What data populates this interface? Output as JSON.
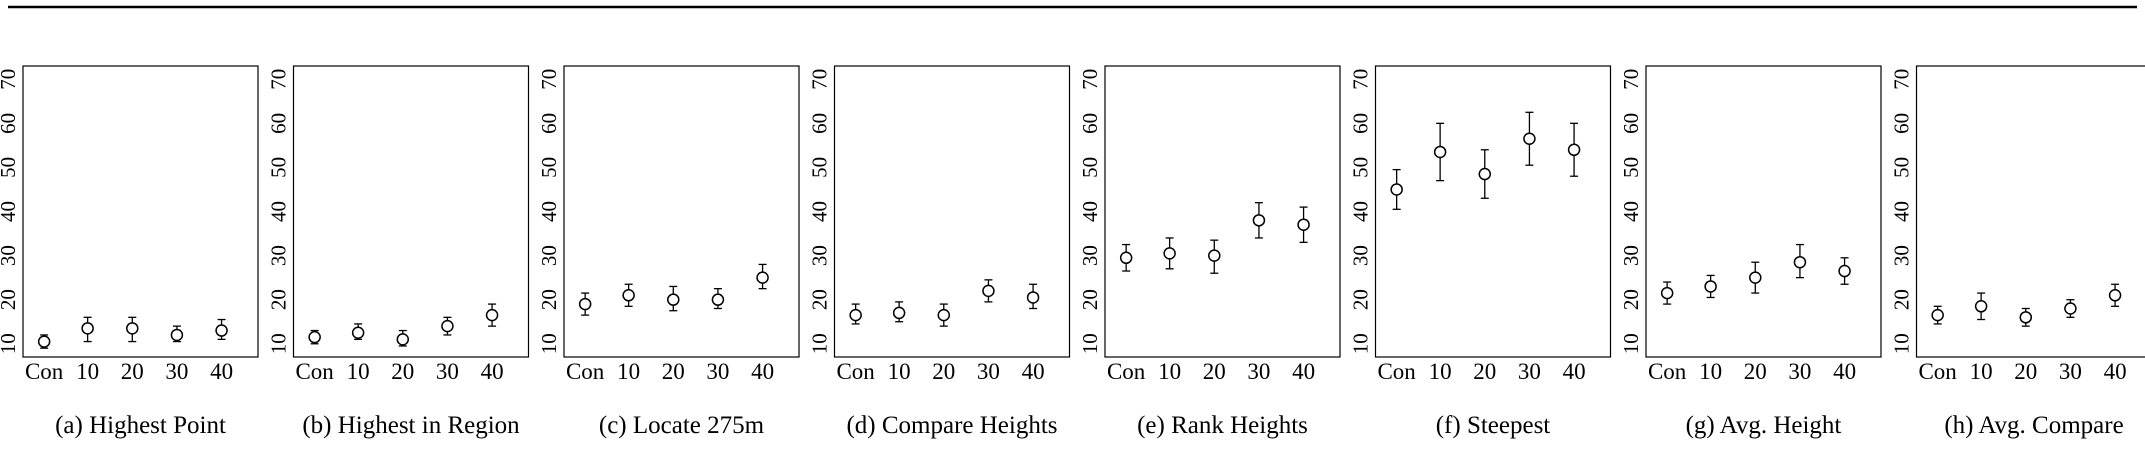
{
  "chart_data": [
    {
      "type": "scatter",
      "caption": "(a) Highest Point",
      "categories": [
        "Con",
        "10",
        "20",
        "30",
        "40"
      ],
      "yticks": [
        10,
        20,
        30,
        40,
        50,
        60,
        70
      ],
      "ylim": [
        7,
        73
      ],
      "error_bars": true,
      "series": [
        {
          "values": [
            10.5,
            13.5,
            13.5,
            12,
            13
          ],
          "lower": [
            9,
            10.5,
            10.5,
            10.5,
            11
          ],
          "upper": [
            12,
            16,
            16,
            14,
            15.5
          ]
        }
      ]
    },
    {
      "type": "scatter",
      "caption": "(b) Highest in Region",
      "categories": [
        "Con",
        "10",
        "20",
        "30",
        "40"
      ],
      "yticks": [
        10,
        20,
        30,
        40,
        50,
        60,
        70
      ],
      "ylim": [
        7,
        73
      ],
      "error_bars": true,
      "series": [
        {
          "values": [
            11.5,
            12.5,
            11,
            14,
            16.5
          ],
          "lower": [
            10,
            11,
            9.5,
            12,
            14
          ],
          "upper": [
            13,
            14.5,
            13,
            16,
            19
          ]
        }
      ]
    },
    {
      "type": "scatter",
      "caption": "(c) Locate 275m",
      "categories": [
        "Con",
        "10",
        "20",
        "30",
        "40"
      ],
      "yticks": [
        10,
        20,
        30,
        40,
        50,
        60,
        70
      ],
      "ylim": [
        7,
        73
      ],
      "error_bars": true,
      "series": [
        {
          "values": [
            19,
            21,
            20,
            20,
            25
          ],
          "lower": [
            16.5,
            18.5,
            17.5,
            18,
            22.5
          ],
          "upper": [
            21.5,
            23.5,
            23,
            22.5,
            28
          ]
        }
      ]
    },
    {
      "type": "scatter",
      "caption": "(d) Compare Heights",
      "categories": [
        "Con",
        "10",
        "20",
        "30",
        "40"
      ],
      "yticks": [
        10,
        20,
        30,
        40,
        50,
        60,
        70
      ],
      "ylim": [
        7,
        73
      ],
      "error_bars": true,
      "series": [
        {
          "values": [
            16.5,
            17,
            16.5,
            22,
            20.5
          ],
          "lower": [
            14.5,
            15,
            14,
            19.5,
            18
          ],
          "upper": [
            19,
            19.5,
            19,
            24.5,
            23.5
          ]
        }
      ]
    },
    {
      "type": "scatter",
      "caption": "(e) Rank Heights",
      "categories": [
        "Con",
        "10",
        "20",
        "30",
        "40"
      ],
      "yticks": [
        10,
        20,
        30,
        40,
        50,
        60,
        70
      ],
      "ylim": [
        7,
        73
      ],
      "error_bars": true,
      "series": [
        {
          "values": [
            29.5,
            30.5,
            30,
            38,
            37
          ],
          "lower": [
            26.5,
            27,
            26,
            34,
            33
          ],
          "upper": [
            32.5,
            34,
            33.5,
            42,
            41
          ]
        }
      ]
    },
    {
      "type": "scatter",
      "caption": "(f) Steepest",
      "categories": [
        "Con",
        "10",
        "20",
        "30",
        "40"
      ],
      "yticks": [
        10,
        20,
        30,
        40,
        50,
        60,
        70
      ],
      "ylim": [
        7,
        73
      ],
      "error_bars": true,
      "series": [
        {
          "values": [
            45,
            53.5,
            48.5,
            56.5,
            54
          ],
          "lower": [
            40.5,
            47,
            43,
            50.5,
            48
          ],
          "upper": [
            49.5,
            60,
            54,
            62.5,
            60
          ]
        }
      ]
    },
    {
      "type": "scatter",
      "caption": "(g) Avg. Height",
      "categories": [
        "Con",
        "10",
        "20",
        "30",
        "40"
      ],
      "yticks": [
        10,
        20,
        30,
        40,
        50,
        60,
        70
      ],
      "ylim": [
        7,
        73
      ],
      "error_bars": true,
      "series": [
        {
          "values": [
            21.5,
            23,
            25,
            28.5,
            26.5
          ],
          "lower": [
            19,
            20.5,
            21.5,
            25,
            23.5
          ],
          "upper": [
            24,
            25.5,
            28.5,
            32.5,
            29.5
          ]
        }
      ]
    },
    {
      "type": "scatter",
      "caption": "(h) Avg. Compare",
      "categories": [
        "Con",
        "10",
        "20",
        "30",
        "40"
      ],
      "yticks": [
        10,
        20,
        30,
        40,
        50,
        60,
        70
      ],
      "ylim": [
        7,
        73
      ],
      "error_bars": true,
      "series": [
        {
          "values": [
            16.5,
            18.5,
            16,
            18,
            21
          ],
          "lower": [
            14.5,
            15.5,
            14,
            16,
            18.5
          ],
          "upper": [
            18.5,
            21.5,
            18,
            20,
            23.5
          ]
        }
      ]
    }
  ]
}
